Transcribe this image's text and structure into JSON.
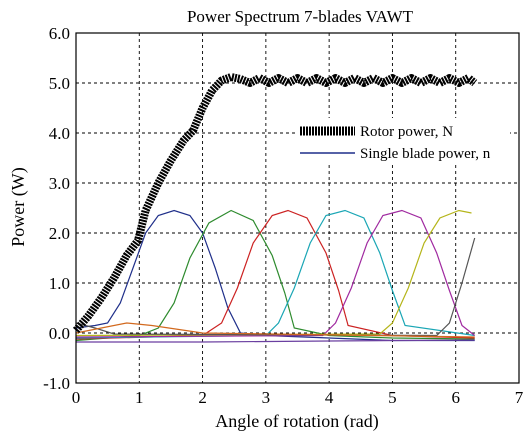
{
  "chart_data": {
    "type": "line",
    "title": "Power  Spectrum 7-blades VAWT",
    "xlabel": "Angle of rotation (rad)",
    "ylabel": "Power  (W)",
    "xlim": [
      0,
      7
    ],
    "ylim": [
      -1.0,
      6.0
    ],
    "x_ticks": [
      "0",
      "1",
      "2",
      "3",
      "4",
      "5",
      "6",
      "7"
    ],
    "y_ticks": [
      "-1.0",
      "0.0",
      "1.0",
      "2.0",
      "3.0",
      "4.0",
      "5.0",
      "6.0"
    ],
    "grid": true,
    "legend_position": "upper-right",
    "legend": {
      "rotor_label": "Rotor power, N",
      "blade_label": "Single blade power, n"
    },
    "series": [
      {
        "name": "Rotor power, N",
        "style": "thick-marker",
        "color": "#000000",
        "points": [
          [
            0.0,
            0.05
          ],
          [
            0.2,
            0.35
          ],
          [
            0.4,
            0.7
          ],
          [
            0.6,
            1.1
          ],
          [
            0.8,
            1.55
          ],
          [
            0.98,
            1.85
          ],
          [
            1.1,
            2.45
          ],
          [
            1.3,
            3.0
          ],
          [
            1.5,
            3.45
          ],
          [
            1.7,
            3.85
          ],
          [
            1.85,
            4.05
          ],
          [
            2.0,
            4.5
          ],
          [
            2.15,
            4.85
          ],
          [
            2.3,
            5.05
          ],
          [
            2.45,
            5.12
          ],
          [
            2.6,
            5.08
          ],
          [
            2.75,
            5.0
          ],
          [
            2.9,
            5.1
          ],
          [
            3.05,
            5.0
          ],
          [
            3.2,
            5.1
          ],
          [
            3.35,
            5.0
          ],
          [
            3.5,
            5.1
          ],
          [
            3.65,
            5.0
          ],
          [
            3.8,
            5.1
          ],
          [
            3.95,
            5.0
          ],
          [
            4.1,
            5.1
          ],
          [
            4.25,
            5.0
          ],
          [
            4.4,
            5.1
          ],
          [
            4.55,
            5.0
          ],
          [
            4.7,
            5.1
          ],
          [
            4.85,
            5.0
          ],
          [
            5.0,
            5.1
          ],
          [
            5.15,
            5.0
          ],
          [
            5.3,
            5.1
          ],
          [
            5.45,
            5.0
          ],
          [
            5.6,
            5.1
          ],
          [
            5.75,
            5.0
          ],
          [
            5.9,
            5.1
          ],
          [
            6.05,
            5.0
          ],
          [
            6.2,
            5.1
          ],
          [
            6.3,
            5.0
          ]
        ]
      },
      {
        "name": "Single blade power, n",
        "color": "#1f2f8a",
        "points": [
          [
            0.0,
            0.1
          ],
          [
            0.3,
            0.15
          ],
          [
            0.5,
            0.2
          ],
          [
            0.7,
            0.6
          ],
          [
            0.9,
            1.3
          ],
          [
            1.1,
            2.0
          ],
          [
            1.3,
            2.35
          ],
          [
            1.55,
            2.45
          ],
          [
            1.8,
            2.35
          ],
          [
            2.0,
            2.0
          ],
          [
            2.2,
            1.3
          ],
          [
            2.4,
            0.5
          ],
          [
            2.6,
            0.0
          ],
          [
            3.0,
            -0.05
          ],
          [
            4.0,
            -0.1
          ],
          [
            5.0,
            -0.15
          ],
          [
            6.3,
            -0.15
          ]
        ]
      },
      {
        "color": "#2e8b2e",
        "points": [
          [
            0.0,
            -0.15
          ],
          [
            1.0,
            -0.05
          ],
          [
            1.3,
            0.1
          ],
          [
            1.55,
            0.6
          ],
          [
            1.8,
            1.5
          ],
          [
            2.1,
            2.2
          ],
          [
            2.45,
            2.45
          ],
          [
            2.8,
            2.25
          ],
          [
            3.1,
            1.55
          ],
          [
            3.3,
            0.8
          ],
          [
            3.45,
            0.1
          ],
          [
            4.0,
            -0.05
          ],
          [
            5.0,
            -0.1
          ],
          [
            6.3,
            -0.12
          ]
        ]
      },
      {
        "color": "#cc2222",
        "points": [
          [
            0.0,
            -0.12
          ],
          [
            2.0,
            -0.05
          ],
          [
            2.3,
            0.2
          ],
          [
            2.55,
            0.9
          ],
          [
            2.8,
            1.8
          ],
          [
            3.1,
            2.35
          ],
          [
            3.35,
            2.45
          ],
          [
            3.65,
            2.3
          ],
          [
            3.95,
            1.6
          ],
          [
            4.15,
            0.85
          ],
          [
            4.3,
            0.15
          ],
          [
            5.0,
            -0.05
          ],
          [
            6.3,
            -0.1
          ]
        ]
      },
      {
        "color": "#1aa6b5",
        "points": [
          [
            0.0,
            -0.1
          ],
          [
            3.0,
            -0.05
          ],
          [
            3.2,
            0.2
          ],
          [
            3.45,
            0.9
          ],
          [
            3.7,
            1.8
          ],
          [
            3.95,
            2.35
          ],
          [
            4.25,
            2.45
          ],
          [
            4.55,
            2.3
          ],
          [
            4.8,
            1.6
          ],
          [
            5.0,
            0.85
          ],
          [
            5.2,
            0.15
          ],
          [
            6.3,
            -0.05
          ]
        ]
      },
      {
        "color": "#a02aa0",
        "points": [
          [
            0.0,
            -0.08
          ],
          [
            3.9,
            -0.05
          ],
          [
            4.1,
            0.2
          ],
          [
            4.35,
            0.9
          ],
          [
            4.6,
            1.8
          ],
          [
            4.85,
            2.35
          ],
          [
            5.15,
            2.45
          ],
          [
            5.45,
            2.3
          ],
          [
            5.7,
            1.6
          ],
          [
            5.9,
            0.85
          ],
          [
            6.1,
            0.15
          ],
          [
            6.3,
            -0.05
          ]
        ]
      },
      {
        "color": "#b5b51a",
        "points": [
          [
            0.0,
            -0.05
          ],
          [
            4.8,
            -0.02
          ],
          [
            5.0,
            0.2
          ],
          [
            5.25,
            0.9
          ],
          [
            5.5,
            1.8
          ],
          [
            5.75,
            2.3
          ],
          [
            6.05,
            2.45
          ],
          [
            6.25,
            2.4
          ]
        ]
      },
      {
        "color": "#555555",
        "points": [
          [
            0.0,
            0.2
          ],
          [
            0.3,
            0.1
          ],
          [
            0.6,
            -0.02
          ],
          [
            5.7,
            -0.05
          ],
          [
            5.9,
            0.2
          ],
          [
            6.1,
            1.0
          ],
          [
            6.3,
            1.9
          ]
        ]
      },
      {
        "color": "#6a3fa0",
        "points": [
          [
            0.0,
            -0.18
          ],
          [
            2.0,
            -0.18
          ],
          [
            4.0,
            -0.16
          ],
          [
            6.3,
            -0.14
          ]
        ]
      },
      {
        "color": "#d2691e",
        "points": [
          [
            0.0,
            0.0
          ],
          [
            0.4,
            0.1
          ],
          [
            0.8,
            0.2
          ],
          [
            1.2,
            0.15
          ],
          [
            2.0,
            0.0
          ],
          [
            6.3,
            -0.08
          ]
        ]
      }
    ]
  },
  "colors": {
    "grid": "#000000",
    "rotor": "#000000",
    "blade_legend_line": "#1f2f8a"
  }
}
